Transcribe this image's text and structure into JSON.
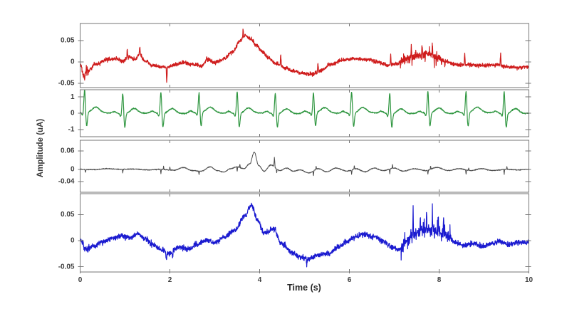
{
  "chart_data": {
    "type": "line",
    "title": "",
    "xlabel": "Time (s)",
    "ylabel": "Amplitude (uA)",
    "x_range": [
      0,
      10
    ],
    "xticks": [
      0,
      2,
      4,
      6,
      8,
      10
    ],
    "xtick_labels": [
      "0",
      "2",
      "4",
      "6",
      "8",
      "10"
    ],
    "grid": false,
    "legend": null,
    "axis_color": "#767676",
    "text_color": "#3c3c3c",
    "panels": [
      {
        "name": "channel-1-red",
        "color": "#cf1d1d",
        "ylim": [
          -0.06,
          0.09
        ],
        "yticks": [
          0.05,
          0,
          -0.05
        ],
        "ytick_labels": [
          "0.05",
          "0",
          "-0.05"
        ],
        "signal": {
          "kind": "noisy-trend",
          "noise": 0.0038,
          "trend": [
            [
              0,
              -0.004
            ],
            [
              0.07,
              -0.028
            ],
            [
              0.18,
              -0.02
            ],
            [
              0.35,
              -0.006
            ],
            [
              0.6,
              0.006
            ],
            [
              0.8,
              0.008
            ],
            [
              0.95,
              0.002
            ],
            [
              1.1,
              0.012
            ],
            [
              1.22,
              0.005
            ],
            [
              1.32,
              0.018
            ],
            [
              1.45,
              0.002
            ],
            [
              1.62,
              -0.008
            ],
            [
              1.8,
              -0.011
            ],
            [
              1.95,
              -0.013
            ],
            [
              2.1,
              -0.007
            ],
            [
              2.3,
              -0.001
            ],
            [
              2.5,
              -0.006
            ],
            [
              2.7,
              -0.009
            ],
            [
              2.85,
              0.005
            ],
            [
              3.0,
              -0.002
            ],
            [
              3.2,
              0.007
            ],
            [
              3.4,
              0.024
            ],
            [
              3.55,
              0.048
            ],
            [
              3.68,
              0.062
            ],
            [
              3.8,
              0.055
            ],
            [
              3.92,
              0.04
            ],
            [
              4.05,
              0.025
            ],
            [
              4.2,
              0.01
            ],
            [
              4.35,
              -0.003
            ],
            [
              4.55,
              -0.013
            ],
            [
              4.75,
              -0.021
            ],
            [
              4.95,
              -0.027
            ],
            [
              5.15,
              -0.029
            ],
            [
              5.35,
              -0.021
            ],
            [
              5.6,
              -0.005
            ],
            [
              5.85,
              0.004
            ],
            [
              6.15,
              0.007
            ],
            [
              6.45,
              0.005
            ],
            [
              6.65,
              -0.001
            ],
            [
              6.85,
              -0.008
            ],
            [
              7.05,
              -0.004
            ],
            [
              7.25,
              0.006
            ],
            [
              7.5,
              0.014
            ],
            [
              7.75,
              0.019
            ],
            [
              7.95,
              0.011
            ],
            [
              8.15,
              0.001
            ],
            [
              8.35,
              -0.006
            ],
            [
              8.65,
              -0.007
            ],
            [
              9.0,
              -0.008
            ],
            [
              9.3,
              -0.007
            ],
            [
              9.55,
              -0.012
            ],
            [
              9.8,
              -0.013
            ],
            [
              10,
              -0.011
            ]
          ],
          "spikes": [
            [
              0.1,
              -0.014,
              0.02
            ],
            [
              1.05,
              0.02,
              0.015
            ],
            [
              1.33,
              0.016,
              0.015
            ],
            [
              1.93,
              -0.034,
              0.015
            ],
            [
              2.82,
              0.01,
              0.012
            ],
            [
              3.63,
              0.02,
              0.012
            ],
            [
              4.47,
              0.03,
              0.015
            ],
            [
              5.3,
              0.022,
              0.015
            ],
            [
              6.92,
              0.027,
              0.012
            ],
            [
              7.38,
              0.032,
              0.012
            ],
            [
              7.62,
              0.031,
              0.012
            ],
            [
              7.85,
              0.04,
              0.012
            ],
            [
              8.57,
              0.03,
              0.014
            ],
            [
              9.37,
              0.03,
              0.014
            ]
          ],
          "bursts": [
            [
              0.02,
              0.2,
              0.005
            ],
            [
              7.1,
              8.15,
              0.01
            ]
          ]
        }
      },
      {
        "name": "channel-2-green",
        "color": "#2f9640",
        "ylim": [
          -1.45,
          1.45
        ],
        "yticks": [
          1,
          0,
          -1
        ],
        "ytick_labels": [
          "1",
          "0",
          "-1"
        ],
        "signal": {
          "kind": "ecg",
          "noise": 0.03,
          "baseline_wave": 0.05,
          "beats": [
            [
              0.1,
              1.42
            ],
            [
              0.95,
              1.28
            ],
            [
              1.8,
              1.32
            ],
            [
              2.65,
              1.22
            ],
            [
              3.5,
              1.35
            ],
            [
              4.35,
              1.28
            ],
            [
              5.2,
              1.25
            ],
            [
              6.05,
              1.32
            ],
            [
              6.9,
              1.28
            ],
            [
              7.75,
              1.35
            ],
            [
              8.6,
              1.3
            ],
            [
              9.45,
              1.38
            ]
          ],
          "qrs": {
            "q": -0.18,
            "s": -0.85,
            "t_wave": 0.32,
            "p_wave": 0.12
          }
        }
      },
      {
        "name": "channel-3-black",
        "color": "#4c4c4c",
        "ylim": [
          -0.075,
          0.095
        ],
        "yticks": [
          0.06,
          0,
          -0.04
        ],
        "ytick_labels": [
          "0.06",
          "0",
          "-0.04"
        ],
        "signal": {
          "kind": "noisy-trend",
          "noise": 0.0012,
          "trend": [
            [
              0,
              0.0
            ],
            [
              0.3,
              -0.001
            ],
            [
              0.6,
              0.002
            ],
            [
              0.9,
              0.0
            ],
            [
              1.2,
              0.001
            ],
            [
              1.5,
              -0.002
            ],
            [
              1.8,
              0.0
            ],
            [
              2.1,
              -0.003
            ],
            [
              2.3,
              0.006
            ],
            [
              2.5,
              -0.004
            ],
            [
              2.7,
              -0.006
            ],
            [
              2.9,
              0.008
            ],
            [
              3.05,
              -0.004
            ],
            [
              3.2,
              -0.009
            ],
            [
              3.35,
              0.002
            ],
            [
              3.5,
              0.008
            ],
            [
              3.65,
              0.002
            ],
            [
              3.78,
              0.018
            ],
            [
              3.88,
              0.056
            ],
            [
              3.98,
              0.012
            ],
            [
              4.1,
              -0.006
            ],
            [
              4.25,
              0.014
            ],
            [
              4.45,
              -0.004
            ],
            [
              4.6,
              0.004
            ],
            [
              4.75,
              -0.006
            ],
            [
              4.9,
              -0.002
            ],
            [
              5.1,
              -0.012
            ],
            [
              5.3,
              0.002
            ],
            [
              5.5,
              -0.008
            ],
            [
              5.7,
              0.004
            ],
            [
              5.95,
              -0.006
            ],
            [
              6.15,
              0.002
            ],
            [
              6.35,
              -0.008
            ],
            [
              6.55,
              0.004
            ],
            [
              6.75,
              -0.004
            ],
            [
              7.0,
              0.004
            ],
            [
              7.2,
              -0.006
            ],
            [
              7.45,
              0.002
            ],
            [
              7.7,
              -0.004
            ],
            [
              7.95,
              0.006
            ],
            [
              8.2,
              -0.004
            ],
            [
              8.45,
              0.002
            ],
            [
              8.7,
              -0.004
            ],
            [
              8.95,
              0.002
            ],
            [
              9.2,
              -0.004
            ],
            [
              9.5,
              0.0
            ],
            [
              9.75,
              -0.002
            ],
            [
              10,
              0.0
            ]
          ],
          "spikes": [
            [
              0.12,
              -0.01,
              0.015
            ],
            [
              0.95,
              -0.012,
              0.012
            ],
            [
              1.8,
              -0.015,
              0.012
            ],
            [
              1.86,
              0.012,
              0.01
            ],
            [
              2.0,
              0.01,
              0.01
            ],
            [
              2.65,
              -0.012,
              0.012
            ],
            [
              3.5,
              -0.014,
              0.012
            ],
            [
              3.56,
              0.012,
              0.01
            ],
            [
              4.33,
              0.032,
              0.015
            ],
            [
              4.38,
              -0.014,
              0.01
            ],
            [
              5.2,
              -0.016,
              0.012
            ],
            [
              5.26,
              0.01,
              0.01
            ],
            [
              6.05,
              -0.014,
              0.012
            ],
            [
              6.11,
              0.012,
              0.01
            ],
            [
              6.9,
              -0.016,
              0.012
            ],
            [
              6.96,
              0.014,
              0.01
            ],
            [
              7.75,
              -0.014,
              0.012
            ],
            [
              7.81,
              0.012,
              0.01
            ],
            [
              8.6,
              -0.014,
              0.012
            ],
            [
              8.66,
              0.01,
              0.01
            ],
            [
              9.45,
              -0.016,
              0.012
            ],
            [
              9.51,
              0.012,
              0.01
            ]
          ],
          "bursts": []
        }
      },
      {
        "name": "channel-4-blue",
        "color": "#1b1bd0",
        "ylim": [
          -0.06,
          0.09
        ],
        "yticks": [
          0.05,
          0,
          -0.05
        ],
        "ytick_labels": [
          "0.05",
          "0",
          "-0.05"
        ],
        "signal": {
          "kind": "noisy-trend",
          "noise": 0.0042,
          "trend": [
            [
              0,
              0.001
            ],
            [
              0.12,
              -0.016
            ],
            [
              0.3,
              -0.011
            ],
            [
              0.5,
              -0.002
            ],
            [
              0.7,
              0.004
            ],
            [
              0.9,
              0.009
            ],
            [
              1.1,
              0.006
            ],
            [
              1.3,
              0.013
            ],
            [
              1.45,
              0.003
            ],
            [
              1.6,
              -0.006
            ],
            [
              1.8,
              -0.016
            ],
            [
              2.0,
              -0.024
            ],
            [
              2.2,
              -0.012
            ],
            [
              2.4,
              -0.017
            ],
            [
              2.6,
              -0.007
            ],
            [
              2.8,
              0.001
            ],
            [
              3.0,
              -0.004
            ],
            [
              3.2,
              0.006
            ],
            [
              3.45,
              0.02
            ],
            [
              3.65,
              0.045
            ],
            [
              3.82,
              0.068
            ],
            [
              3.95,
              0.04
            ],
            [
              4.1,
              0.014
            ],
            [
              4.3,
              0.022
            ],
            [
              4.5,
              -0.006
            ],
            [
              4.7,
              -0.022
            ],
            [
              4.9,
              -0.031
            ],
            [
              5.1,
              -0.035
            ],
            [
              5.3,
              -0.027
            ],
            [
              5.55,
              -0.024
            ],
            [
              5.75,
              -0.012
            ],
            [
              5.95,
              -0.002
            ],
            [
              6.15,
              0.008
            ],
            [
              6.35,
              0.012
            ],
            [
              6.55,
              0.007
            ],
            [
              6.75,
              -0.001
            ],
            [
              6.95,
              -0.012
            ],
            [
              7.1,
              -0.017
            ],
            [
              7.25,
              -0.003
            ],
            [
              7.45,
              0.012
            ],
            [
              7.65,
              0.02
            ],
            [
              7.85,
              0.022
            ],
            [
              8.05,
              0.016
            ],
            [
              8.2,
              0.01
            ],
            [
              8.35,
              -0.003
            ],
            [
              8.55,
              -0.009
            ],
            [
              8.75,
              -0.005
            ],
            [
              8.95,
              -0.011
            ],
            [
              9.15,
              -0.006
            ],
            [
              9.35,
              -0.001
            ],
            [
              9.55,
              -0.007
            ],
            [
              9.75,
              -0.004
            ],
            [
              10,
              -0.003
            ]
          ],
          "spikes": [
            [
              1.92,
              -0.02,
              0.015
            ],
            [
              2.06,
              -0.016,
              0.012
            ],
            [
              4.35,
              0.012,
              0.015
            ],
            [
              5.05,
              -0.013,
              0.012
            ],
            [
              7.42,
              0.055,
              0.01
            ],
            [
              7.58,
              0.035,
              0.01
            ],
            [
              7.72,
              0.04,
              0.01
            ],
            [
              7.85,
              0.045,
              0.01
            ],
            [
              7.98,
              0.034,
              0.01
            ],
            [
              8.1,
              0.03,
              0.01
            ]
          ],
          "bursts": [
            [
              0.05,
              0.25,
              0.004
            ],
            [
              7.15,
              8.25,
              0.013
            ]
          ]
        }
      }
    ]
  }
}
